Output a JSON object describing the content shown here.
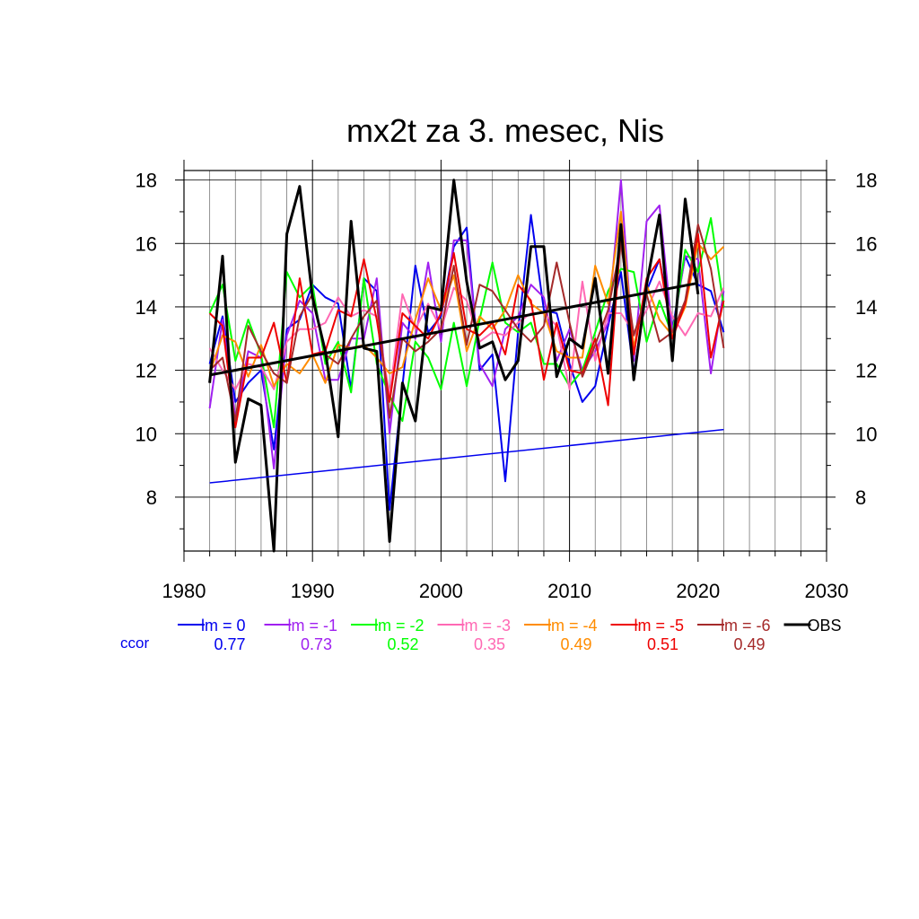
{
  "chart_data": {
    "type": "line",
    "title": "mx2t za 3. mesec, Nis",
    "xlabel": "",
    "ylabel": "",
    "xlim": [
      1980,
      2030
    ],
    "ylim": [
      6.3,
      18.3
    ],
    "xticks": [
      1980,
      1990,
      2000,
      2010,
      2020,
      2030
    ],
    "yticks": [
      8,
      10,
      12,
      14,
      16,
      18
    ],
    "grid": true,
    "x": [
      1982,
      1983,
      1984,
      1985,
      1986,
      1987,
      1988,
      1989,
      1990,
      1991,
      1992,
      1993,
      1994,
      1995,
      1996,
      1997,
      1998,
      1999,
      2000,
      2001,
      2002,
      2003,
      2004,
      2005,
      2006,
      2007,
      2008,
      2009,
      2010,
      2011,
      2012,
      2013,
      2014,
      2015,
      2016,
      2017,
      2018,
      2019,
      2020,
      2021,
      2022
    ],
    "series": [
      {
        "name": "lm = 0",
        "color": "#0000ee",
        "width": 2,
        "values": [
          12.2,
          13.7,
          11.0,
          11.6,
          12.0,
          9.5,
          13.3,
          13.6,
          14.7,
          14.3,
          14.1,
          11.4,
          14.9,
          14.5,
          7.6,
          11.5,
          15.3,
          13.2,
          13.7,
          15.9,
          16.5,
          12.0,
          12.5,
          8.5,
          13.2,
          16.9,
          13.9,
          13.8,
          12.2,
          11.0,
          11.5,
          13.4,
          15.1,
          11.9,
          14.5,
          15.5,
          13.3,
          15.6,
          14.7,
          14.5,
          13.2
        ]
      },
      {
        "name": "lm = -1",
        "color": "#a020f0",
        "width": 2,
        "values": [
          10.8,
          13.6,
          10.5,
          12.6,
          12.4,
          8.9,
          13.1,
          14.2,
          13.8,
          11.7,
          11.7,
          13.0,
          13.0,
          14.9,
          10.0,
          13.5,
          13.0,
          15.4,
          12.9,
          16.1,
          16.1,
          12.2,
          11.5,
          13.3,
          13.7,
          14.7,
          14.3,
          12.3,
          13.3,
          12.0,
          12.6,
          13.5,
          18.0,
          12.3,
          16.7,
          17.2,
          13.2,
          15.6,
          15.5,
          11.9,
          14.5
        ]
      },
      {
        "name": "lm = -2",
        "color": "#00ff00",
        "width": 2,
        "values": [
          13.8,
          14.7,
          12.3,
          13.6,
          12.5,
          10.2,
          15.1,
          14.3,
          14.7,
          12.2,
          12.9,
          11.3,
          14.9,
          12.2,
          11.2,
          10.4,
          12.9,
          12.4,
          11.4,
          13.5,
          11.5,
          13.6,
          15.4,
          13.5,
          13.2,
          13.5,
          12.2,
          12.2,
          11.5,
          12.0,
          13.2,
          14.5,
          15.2,
          15.1,
          12.9,
          14.2,
          13.1,
          15.8,
          15.1,
          16.8,
          14.0
        ]
      },
      {
        "name": "lm = -3",
        "color": "#ff69b4",
        "width": 2,
        "values": [
          12.7,
          12.0,
          11.4,
          12.2,
          12.1,
          11.4,
          12.9,
          13.3,
          13.3,
          13.5,
          14.3,
          13.7,
          13.9,
          13.7,
          11.2,
          14.4,
          13.3,
          14.1,
          13.3,
          14.6,
          14.2,
          12.9,
          13.2,
          13.1,
          13.5,
          13.8,
          13.8,
          13.4,
          11.4,
          14.8,
          12.3,
          13.8,
          13.8,
          13.2,
          13.9,
          14.8,
          13.7,
          13.1,
          13.8,
          13.7,
          14.6
        ]
      },
      {
        "name": "lm = -4",
        "color": "#ff8c00",
        "width": 2,
        "values": [
          11.9,
          13.1,
          12.9,
          11.8,
          12.8,
          11.5,
          12.2,
          11.9,
          12.5,
          11.6,
          12.8,
          12.7,
          12.8,
          12.4,
          11.9,
          12.1,
          13.6,
          14.9,
          13.9,
          15.0,
          12.6,
          13.7,
          13.3,
          13.9,
          15.0,
          14.1,
          13.8,
          12.6,
          12.4,
          12.4,
          15.3,
          14.1,
          17.0,
          12.7,
          14.7,
          13.6,
          13.1,
          14.0,
          16.0,
          15.5,
          15.9
        ]
      },
      {
        "name": "lm = -5",
        "color": "#ee0000",
        "width": 2,
        "values": [
          13.8,
          13.4,
          10.2,
          12.4,
          12.4,
          13.5,
          11.6,
          14.9,
          12.5,
          12.6,
          13.9,
          13.7,
          15.5,
          13.6,
          11.0,
          13.8,
          13.4,
          13.0,
          13.8,
          15.7,
          13.3,
          13.1,
          13.5,
          12.5,
          14.7,
          14.2,
          11.7,
          13.5,
          12.0,
          11.9,
          13.0,
          10.9,
          16.3,
          12.5,
          14.9,
          15.5,
          13.0,
          14.1,
          16.3,
          12.4,
          14.2
        ]
      },
      {
        "name": "lm = -6",
        "color": "#a52a2a",
        "width": 2,
        "values": [
          12.0,
          12.4,
          10.4,
          13.4,
          12.6,
          11.9,
          11.6,
          13.7,
          14.4,
          12.5,
          12.2,
          13.0,
          13.7,
          14.2,
          10.5,
          13.0,
          12.6,
          12.9,
          13.3,
          15.3,
          12.8,
          14.7,
          14.5,
          13.9,
          13.3,
          12.9,
          13.4,
          15.4,
          13.5,
          11.8,
          12.8,
          13.9,
          16.0,
          13.1,
          14.4,
          12.9,
          13.2,
          14.2,
          16.6,
          15.2,
          12.7
        ]
      },
      {
        "name": "OBS",
        "color": "#000000",
        "width": 3,
        "values": [
          11.6,
          15.6,
          9.1,
          11.1,
          10.9,
          6.3,
          16.3,
          17.8,
          14.3,
          12.6,
          9.9,
          16.7,
          12.7,
          12.6,
          6.6,
          11.6,
          10.4,
          14.0,
          13.9,
          18.0,
          14.8,
          12.7,
          12.9,
          11.7,
          12.3,
          15.9,
          15.9,
          11.8,
          13.0,
          12.7,
          14.9,
          11.9,
          16.6,
          11.7,
          14.7,
          16.9,
          12.3,
          17.4,
          14.4,
          null,
          null
        ]
      }
    ],
    "trend_lines": [
      {
        "name": "OBS trend",
        "color": "#000000",
        "width": 3,
        "x": [
          1982,
          2020
        ],
        "y": [
          11.85,
          14.75
        ]
      },
      {
        "name": "lm = 0 trend",
        "color": "#0000ee",
        "width": 1.5,
        "x": [
          1982,
          2022
        ],
        "y": [
          8.45,
          10.13
        ]
      }
    ],
    "legend": {
      "placement": "bottom",
      "ccor_label": "ccor",
      "ccor_color": "#0000ee",
      "entries": [
        {
          "label": "lm = 0",
          "ccor": "0.77",
          "color": "#0000ee"
        },
        {
          "label": "lm = -1",
          "ccor": "0.73",
          "color": "#a020f0"
        },
        {
          "label": "lm = -2",
          "ccor": "0.52",
          "color": "#00ff00"
        },
        {
          "label": "lm = -3",
          "ccor": "0.35",
          "color": "#ff69b4"
        },
        {
          "label": "lm = -4",
          "ccor": "0.49",
          "color": "#ff8c00"
        },
        {
          "label": "lm = -5",
          "ccor": "0.51",
          "color": "#ee0000"
        },
        {
          "label": "lm = -6",
          "ccor": "0.49",
          "color": "#a52a2a"
        },
        {
          "label": "OBS",
          "ccor": "",
          "color": "#000000"
        }
      ]
    }
  }
}
